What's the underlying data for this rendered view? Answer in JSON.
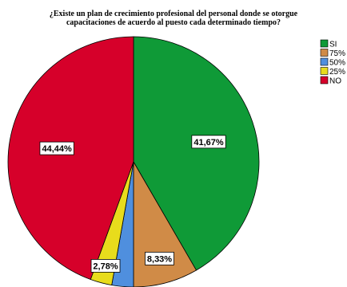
{
  "chart_data": {
    "type": "pie",
    "title_lines": [
      "¿Existe un plan de crecimiento profesional del personal donde se otorgue",
      "capacitaciones de acuerdo al puesto cada determinado tiempo?"
    ],
    "slices": [
      {
        "name": "SI",
        "value": 41.67,
        "label": "41,67%",
        "color": "#0f9a37"
      },
      {
        "name": "75%",
        "value": 8.33,
        "label": "8,33%",
        "color": "#d08b47"
      },
      {
        "name": "50%",
        "value": 2.78,
        "label": "",
        "color": "#4f8fde"
      },
      {
        "name": "25%",
        "value": 2.78,
        "label": "2,78%",
        "color": "#e8dc1c"
      },
      {
        "name": "NO",
        "value": 44.44,
        "label": "44,44%",
        "color": "#d6002a"
      }
    ],
    "start_angle_deg": 0,
    "direction": "clockwise",
    "legend_position": "top-right"
  }
}
